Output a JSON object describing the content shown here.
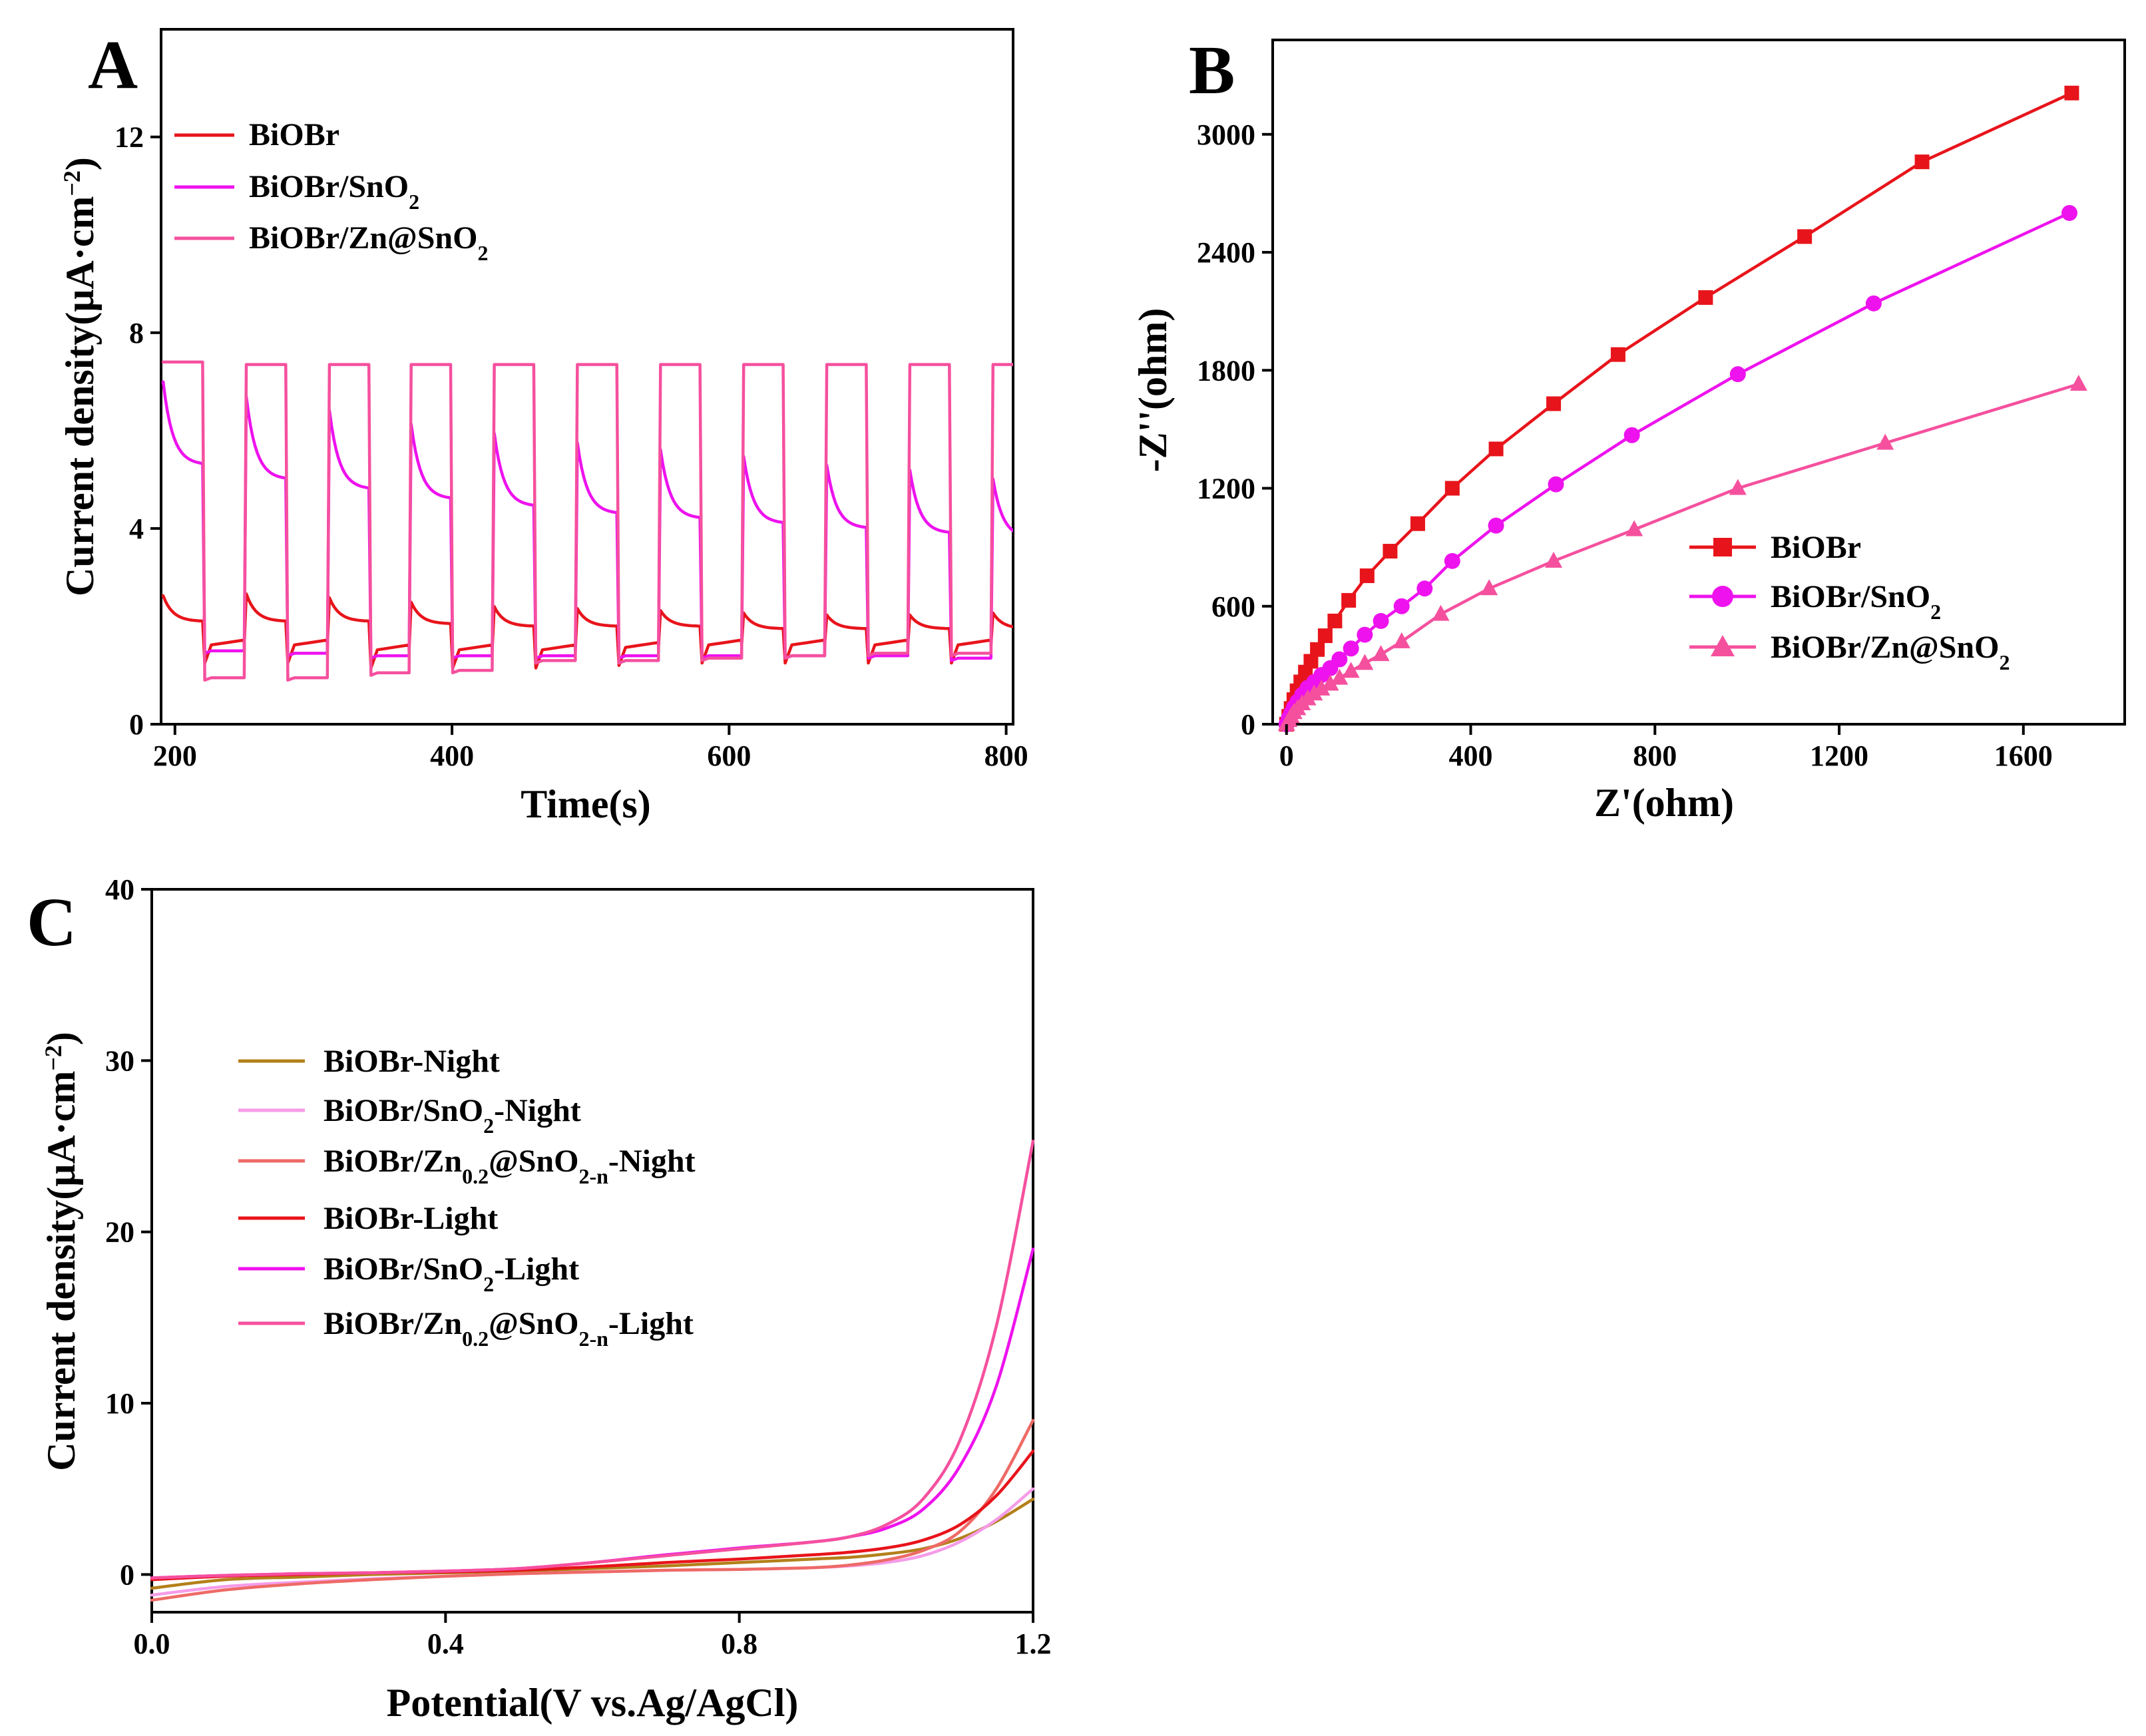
{
  "panels": {
    "A": {
      "letter": "A",
      "xlabel": "Time(s)",
      "ylabel_main": "Current density(μA·cm",
      "ylabel_sup": "−2",
      "ylabel_close": ")",
      "xticks": [
        "200",
        "400",
        "600",
        "800"
      ],
      "yticks": [
        "0",
        "4",
        "8",
        "12"
      ],
      "legend": [
        {
          "main": "BiOBr",
          "sub": "",
          "tail": ""
        },
        {
          "main": "BiOBr/SnO",
          "sub": "2",
          "tail": ""
        },
        {
          "main": "BiOBr/Zn@SnO",
          "sub": "2",
          "tail": ""
        }
      ]
    },
    "B": {
      "letter": "B",
      "xlabel": "Z'(ohm)",
      "ylabel": "-Z''(ohm)",
      "xticks": [
        "0",
        "400",
        "800",
        "1200",
        "1600"
      ],
      "yticks": [
        "0",
        "600",
        "1200",
        "1800",
        "2400",
        "3000"
      ],
      "legend": [
        {
          "main": "BiOBr",
          "sub": "",
          "tail": ""
        },
        {
          "main": "BiOBr/SnO",
          "sub": "2",
          "tail": ""
        },
        {
          "main": "BiOBr/Zn@SnO",
          "sub": "2",
          "tail": ""
        }
      ]
    },
    "C": {
      "letter": "C",
      "xlabel": "Potential(V vs.Ag/AgCl)",
      "ylabel_main": "Current density(μA·cm",
      "ylabel_sup": "−2",
      "ylabel_close": ")",
      "xticks": [
        "0.0",
        "0.4",
        "0.8",
        "1.2"
      ],
      "yticks": [
        "0",
        "10",
        "20",
        "30",
        "40"
      ],
      "legend": [
        {
          "main": "BiOBr-Night",
          "sub": "",
          "mid": "",
          "sub2": "",
          "tail": ""
        },
        {
          "main": "BiOBr/SnO",
          "sub": "2",
          "mid": "",
          "sub2": "",
          "tail": "-Night"
        },
        {
          "main": "BiOBr/Zn",
          "sub": "0.2",
          "mid": "@SnO",
          "sub2": "2-n",
          "tail": "-Night"
        },
        {
          "main": "BiOBr-Light",
          "sub": "",
          "mid": "",
          "sub2": "",
          "tail": ""
        },
        {
          "main": "BiOBr/SnO",
          "sub": "2",
          "mid": "",
          "sub2": "",
          "tail": "-Light"
        },
        {
          "main": "BiOBr/Zn",
          "sub": "0.2",
          "mid": "@SnO",
          "sub2": "2-n",
          "tail": "-Light"
        }
      ]
    }
  },
  "chart_data": [
    {
      "id": "A",
      "type": "line",
      "title": "",
      "xlabel": "Time(s)",
      "ylabel": "Current density(μA·cm−2)",
      "xlim": [
        190,
        805
      ],
      "ylim": [
        0,
        14.2
      ],
      "light_on_times": [
        190,
        250,
        310,
        369,
        429,
        489,
        549,
        609,
        669,
        729,
        789
      ],
      "light_off_times": [
        220,
        280,
        340,
        399,
        459,
        519,
        579,
        639,
        699,
        759
      ],
      "series": [
        {
          "name": "BiOBr",
          "color": "#e8141b",
          "on_start": [
            2.75,
            2.8,
            2.7,
            2.6,
            2.5,
            2.45,
            2.4,
            2.35,
            2.3,
            2.3,
            2.35
          ],
          "on_end": [
            2.1,
            2.1,
            2.1,
            2.05,
            2.0,
            2.0,
            2.0,
            1.95,
            1.95,
            1.95,
            1.95
          ],
          "off_level": [
            1.6,
            1.6,
            1.5,
            1.5,
            1.5,
            1.55,
            1.6,
            1.6,
            1.6,
            1.6
          ]
        },
        {
          "name": "BiOBr/SnO2",
          "color": "#ee12ee",
          "on_start": [
            7.4,
            7.1,
            6.8,
            6.5,
            6.3,
            6.1,
            5.95,
            5.8,
            5.6,
            5.5,
            5.3
          ],
          "on_end": [
            5.3,
            5.0,
            4.8,
            4.6,
            4.45,
            4.3,
            4.2,
            4.1,
            4.0,
            3.9,
            3.8
          ],
          "off_level": [
            1.5,
            1.45,
            1.4,
            1.4,
            1.4,
            1.4,
            1.4,
            1.4,
            1.4,
            1.35
          ]
        },
        {
          "name": "BiOBr/Zn@SnO2",
          "color": "#f5509e",
          "on_start": [
            7.4,
            7.35,
            7.35,
            7.35,
            7.35,
            7.35,
            7.35,
            7.35,
            7.35,
            7.35,
            7.35
          ],
          "on_end": [
            7.4,
            7.35,
            7.35,
            7.35,
            7.35,
            7.35,
            7.35,
            7.35,
            7.35,
            7.35,
            7.35
          ],
          "off_level": [
            0.95,
            0.95,
            1.05,
            1.1,
            1.3,
            1.3,
            1.35,
            1.4,
            1.45,
            1.45
          ]
        }
      ]
    },
    {
      "id": "B",
      "type": "line",
      "title": "",
      "xlabel": "Z'(ohm)",
      "ylabel": "-Z''(ohm)",
      "xlim": [
        -30,
        1820
      ],
      "ylim": [
        0,
        3480
      ],
      "series": [
        {
          "name": "BiOBr",
          "color": "#e8141b",
          "marker": "square",
          "x": [
            0,
            5,
            10,
            16,
            23,
            31,
            41,
            53,
            67,
            84,
            105,
            135,
            175,
            225,
            285,
            360,
            455,
            580,
            720,
            910,
            1125,
            1380,
            1705
          ],
          "y": [
            0,
            40,
            80,
            125,
            170,
            215,
            265,
            320,
            380,
            450,
            525,
            630,
            755,
            880,
            1020,
            1200,
            1400,
            1630,
            1880,
            2170,
            2480,
            2860,
            3210
          ]
        },
        {
          "name": "BiOBr/SnO2",
          "color": "#ee12ee",
          "marker": "circle",
          "x": [
            0,
            5,
            10,
            16,
            24,
            34,
            46,
            60,
            76,
            95,
            115,
            140,
            170,
            205,
            250,
            300,
            360,
            455,
            585,
            750,
            980,
            1275,
            1700
          ],
          "y": [
            0,
            30,
            55,
            85,
            115,
            150,
            185,
            215,
            250,
            285,
            330,
            385,
            455,
            525,
            600,
            690,
            830,
            1010,
            1220,
            1470,
            1780,
            2140,
            2600
          ]
        },
        {
          "name": "BiOBr/Zn@SnO2",
          "color": "#f5509e",
          "marker": "triangle",
          "x": [
            0,
            5,
            10,
            16,
            24,
            34,
            46,
            60,
            76,
            95,
            115,
            140,
            170,
            205,
            250,
            335,
            440,
            580,
            755,
            980,
            1300,
            1720
          ],
          "y": [
            0,
            20,
            40,
            60,
            80,
            105,
            130,
            155,
            180,
            205,
            235,
            270,
            310,
            355,
            420,
            560,
            690,
            830,
            990,
            1200,
            1430,
            1730
          ]
        }
      ]
    },
    {
      "id": "C",
      "type": "line",
      "title": "",
      "xlabel": "Potential(V vs.Ag/AgCl)",
      "ylabel": "Current density(μA·cm−2)",
      "xlim": [
        0,
        1.2
      ],
      "ylim": [
        -2.2,
        40
      ],
      "series": [
        {
          "name": "BiOBr-Night",
          "color": "#b3801a",
          "x": [
            0,
            0.1,
            0.2,
            0.3,
            0.4,
            0.5,
            0.6,
            0.7,
            0.8,
            0.9,
            0.95,
            1.0,
            1.05,
            1.1,
            1.15,
            1.2
          ],
          "y": [
            -0.8,
            -0.3,
            -0.15,
            0,
            0.1,
            0.2,
            0.35,
            0.5,
            0.7,
            0.9,
            1.0,
            1.2,
            1.5,
            2.1,
            3.1,
            4.4
          ]
        },
        {
          "name": "BiOBr/SnO2-Night",
          "color": "#f59ce8",
          "x": [
            0,
            0.1,
            0.2,
            0.3,
            0.4,
            0.5,
            0.6,
            0.7,
            0.8,
            0.9,
            0.95,
            1.0,
            1.05,
            1.1,
            1.15,
            1.2
          ],
          "y": [
            -1.2,
            -0.7,
            -0.45,
            -0.25,
            -0.1,
            0.05,
            0.15,
            0.25,
            0.3,
            0.4,
            0.5,
            0.7,
            1.1,
            1.9,
            3.2,
            5.0
          ]
        },
        {
          "name": "BiOBr/Zn0.2@SnO2-n-Night",
          "color": "#ee6a66",
          "x": [
            0,
            0.1,
            0.2,
            0.3,
            0.4,
            0.5,
            0.6,
            0.7,
            0.8,
            0.9,
            0.95,
            1.0,
            1.05,
            1.1,
            1.15,
            1.2
          ],
          "y": [
            -1.5,
            -0.9,
            -0.55,
            -0.3,
            -0.1,
            0.05,
            0.15,
            0.25,
            0.3,
            0.4,
            0.55,
            0.85,
            1.4,
            2.5,
            5.0,
            9.0
          ]
        },
        {
          "name": "BiOBr-Light",
          "color": "#e8141b",
          "x": [
            0,
            0.1,
            0.2,
            0.3,
            0.4,
            0.5,
            0.6,
            0.7,
            0.8,
            0.9,
            0.95,
            1.0,
            1.05,
            1.1,
            1.15,
            1.2
          ],
          "y": [
            -0.3,
            -0.1,
            0,
            0.1,
            0.15,
            0.25,
            0.45,
            0.7,
            0.9,
            1.15,
            1.3,
            1.55,
            2.0,
            2.9,
            4.6,
            7.2
          ]
        },
        {
          "name": "BiOBr/SnO2-Light",
          "color": "#ee12ee",
          "x": [
            0,
            0.1,
            0.2,
            0.3,
            0.4,
            0.5,
            0.6,
            0.7,
            0.8,
            0.9,
            0.95,
            1.0,
            1.05,
            1.1,
            1.15,
            1.2
          ],
          "y": [
            -0.2,
            -0.05,
            0.05,
            0.1,
            0.2,
            0.35,
            0.7,
            1.15,
            1.55,
            1.9,
            2.2,
            2.7,
            3.8,
            6.3,
            11.0,
            19.0
          ]
        },
        {
          "name": "BiOBr/Zn0.2@SnO2-n-Light",
          "color": "#f5509e",
          "x": [
            0,
            0.1,
            0.2,
            0.3,
            0.4,
            0.5,
            0.6,
            0.7,
            0.8,
            0.9,
            0.95,
            1.0,
            1.05,
            1.1,
            1.15,
            1.2
          ],
          "y": [
            -0.2,
            -0.05,
            0.05,
            0.1,
            0.2,
            0.35,
            0.7,
            1.1,
            1.5,
            1.9,
            2.2,
            2.9,
            4.4,
            7.8,
            14.5,
            25.3
          ]
        }
      ]
    }
  ]
}
